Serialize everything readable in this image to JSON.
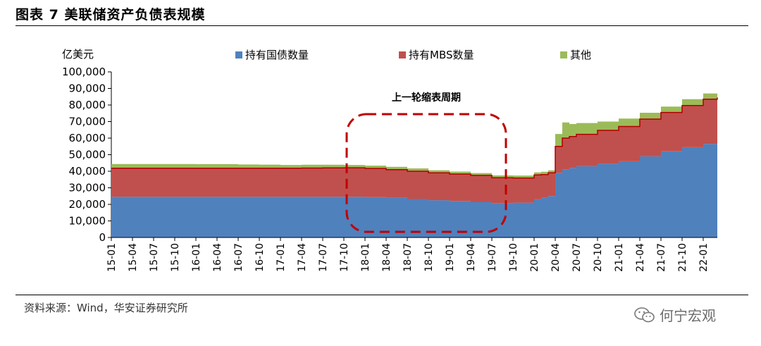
{
  "header": {
    "title": "图表 7 美联储资产负债表规模"
  },
  "footer": {
    "source": "资料来源：Wind，华安证券研究所",
    "watermark": "何宁宏观"
  },
  "chart_data": {
    "type": "area",
    "stacked": true,
    "unit_label": "亿美元",
    "ylim": [
      0,
      100000
    ],
    "yticks": [
      0,
      10000,
      20000,
      30000,
      40000,
      50000,
      60000,
      70000,
      80000,
      90000,
      100000
    ],
    "ytick_labels": [
      "0",
      "10,000",
      "20,000",
      "30,000",
      "40,000",
      "50,000",
      "60,000",
      "70,000",
      "80,000",
      "90,000",
      "100,000"
    ],
    "grid": false,
    "legend_position": "top",
    "xtick_labels": [
      "15-01",
      "15-04",
      "15-07",
      "15-10",
      "16-01",
      "16-04",
      "16-07",
      "16-10",
      "17-01",
      "17-04",
      "17-07",
      "17-10",
      "18-01",
      "18-04",
      "18-07",
      "18-10",
      "19-01",
      "19-04",
      "19-07",
      "19-10",
      "20-01",
      "20-04",
      "20-07",
      "20-10",
      "21-01",
      "21-04",
      "21-07",
      "21-10",
      "22-01"
    ],
    "x": [
      "15-01",
      "15-04",
      "15-07",
      "15-10",
      "16-01",
      "16-04",
      "16-07",
      "16-10",
      "17-01",
      "17-04",
      "17-07",
      "17-10",
      "18-01",
      "18-04",
      "18-07",
      "18-10",
      "19-01",
      "19-04",
      "19-07",
      "19-10",
      "20-01",
      "20-02",
      "20-03",
      "20-04",
      "20-05",
      "20-06",
      "20-07",
      "20-10",
      "21-01",
      "21-04",
      "21-07",
      "21-10",
      "22-01",
      "22-03"
    ],
    "series": [
      {
        "name": "持有国债数量",
        "color": "#4f81bd",
        "values": [
          24600,
          24600,
          24600,
          24600,
          24600,
          24600,
          24600,
          24600,
          24600,
          24600,
          24600,
          24600,
          24400,
          24000,
          23200,
          22500,
          22000,
          21500,
          20800,
          21000,
          23000,
          24000,
          25000,
          39000,
          41000,
          42000,
          43000,
          44500,
          46000,
          49000,
          52000,
          54500,
          56500,
          57000
        ]
      },
      {
        "name": "持有MBS数量",
        "color": "#c0504d",
        "values": [
          17200,
          17200,
          17200,
          17200,
          17200,
          17200,
          17200,
          17200,
          17200,
          17300,
          17400,
          17500,
          17300,
          17000,
          16800,
          16500,
          16300,
          16000,
          15300,
          14900,
          14800,
          14000,
          14000,
          16000,
          19000,
          19000,
          19300,
          20200,
          21000,
          22500,
          23500,
          25200,
          27000,
          27500
        ]
      },
      {
        "name": "其他",
        "color": "#9bbb59",
        "values": [
          2600,
          2600,
          2600,
          2600,
          2500,
          2500,
          2300,
          2200,
          2000,
          2000,
          1900,
          1700,
          1700,
          1700,
          1700,
          1600,
          1500,
          1400,
          1400,
          1500,
          1500,
          1700,
          1500,
          7500,
          9500,
          7500,
          6800,
          5300,
          4800,
          3800,
          3500,
          3800,
          3500,
          4000
        ]
      }
    ],
    "annotations": [
      {
        "text": "上一轮缩表周期",
        "shape": "dashed-rounded-rect",
        "color": "#c00000",
        "from": "17-10",
        "to": "19-10"
      }
    ]
  }
}
